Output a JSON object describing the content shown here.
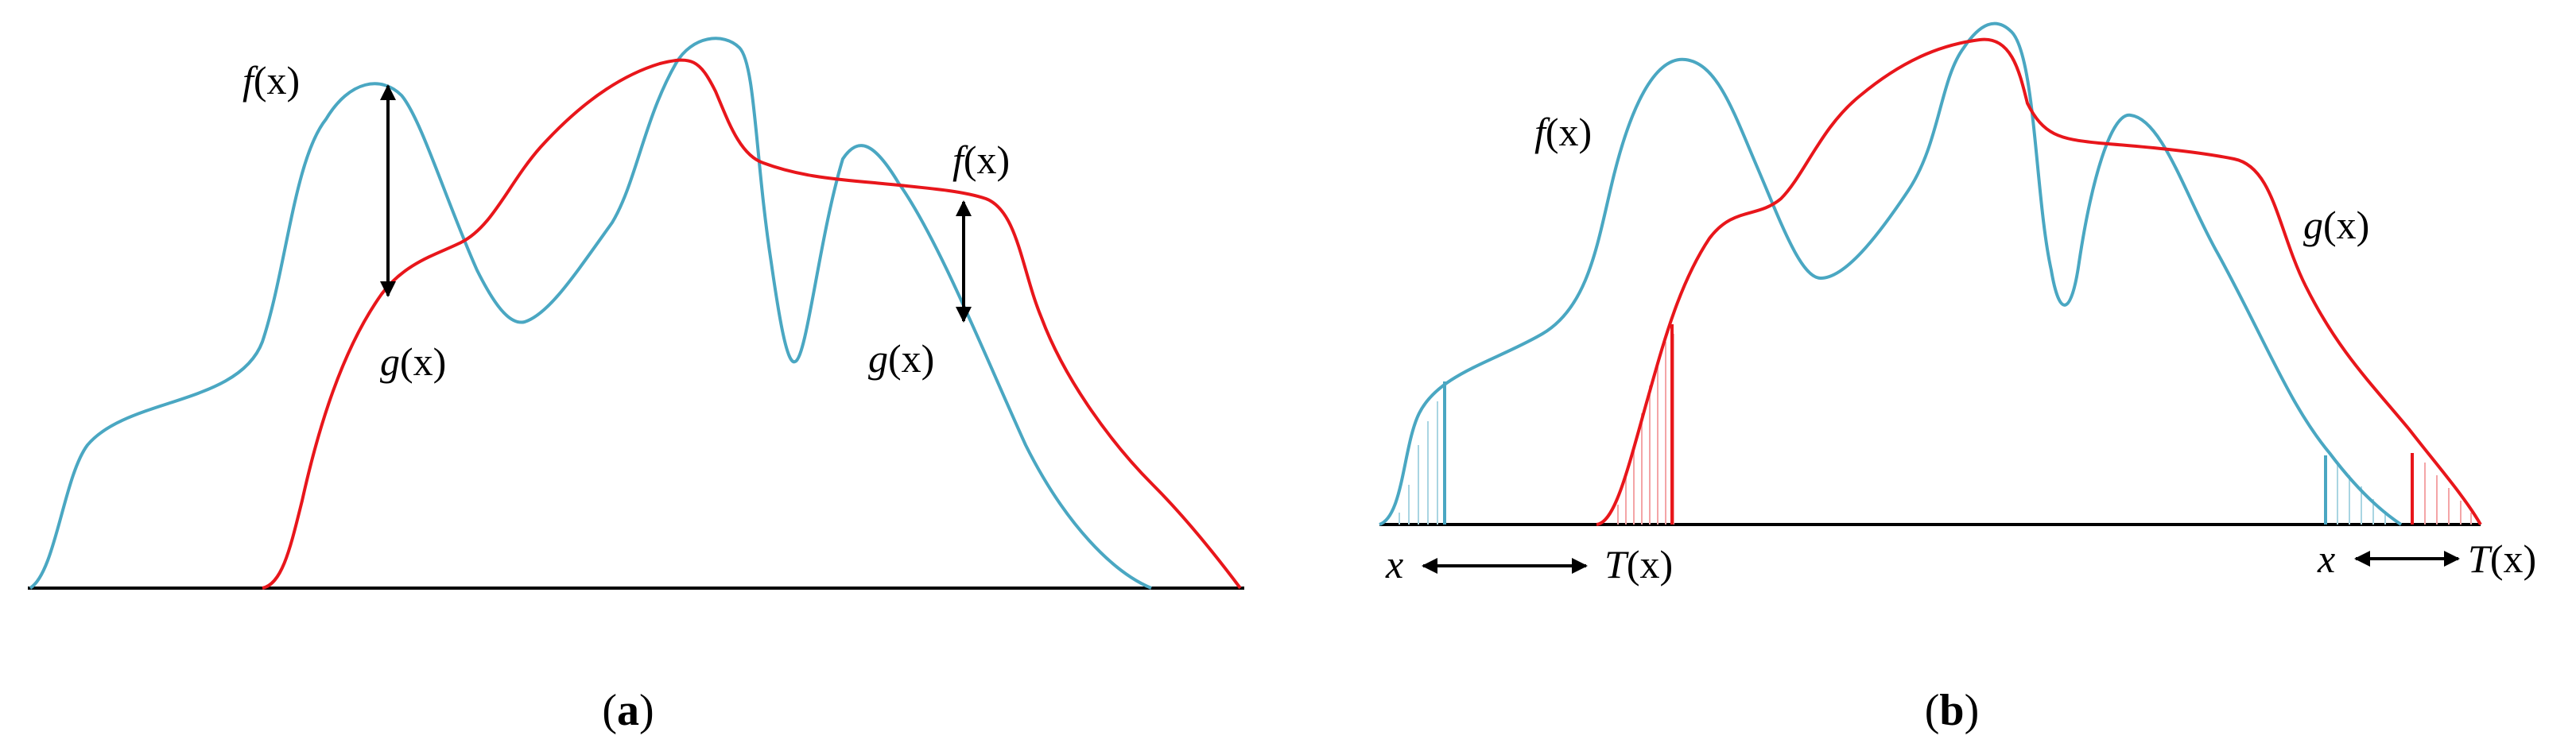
{
  "colors": {
    "f_curve": "#4aa7c2",
    "g_curve": "#e8161b",
    "f_shade": "#a9d5e2",
    "g_shade": "#f4a5a7",
    "axis": "#000000",
    "arrow": "#000000"
  },
  "panel_a": {
    "caption_open": "(",
    "caption_letter": "a",
    "caption_close": ")",
    "labels": {
      "f_left": {
        "fn": "f",
        "arg": "(x)"
      },
      "g_left": {
        "fn": "g",
        "arg": "(x)"
      },
      "f_right": {
        "fn": "f",
        "arg": "(x)"
      },
      "g_right": {
        "fn": "g",
        "arg": "(x)"
      }
    }
  },
  "panel_b": {
    "caption_open": "(",
    "caption_letter": "b",
    "caption_close": ")",
    "labels": {
      "f": {
        "fn": "f",
        "arg": "(x)"
      },
      "g": {
        "fn": "g",
        "arg": "(x)"
      },
      "x_left": "x",
      "t_left": {
        "fn": "T",
        "arg": "(x)"
      },
      "x_right": "x",
      "t_right": {
        "fn": "T",
        "arg": "(x)"
      }
    }
  },
  "icons": {
    "double_arrow": "double-headed-arrow-icon"
  }
}
